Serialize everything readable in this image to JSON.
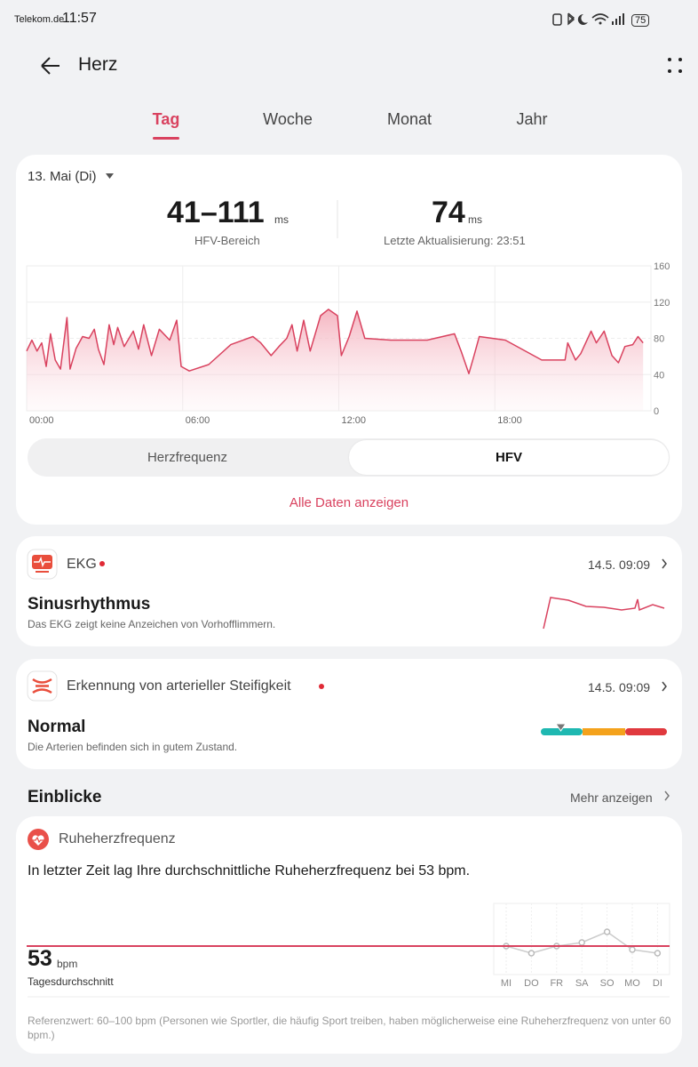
{
  "status_bar": {
    "carrier": "Telekom.de",
    "time": "11:57",
    "battery": "75"
  },
  "header": {
    "title": "Herz"
  },
  "tabs": [
    "Tag",
    "Woche",
    "Monat",
    "Jahr"
  ],
  "active_tab": 0,
  "summary": {
    "date": "13. Mai (Di)",
    "range": {
      "value": "41–111",
      "unit": "ms",
      "label": "HFV-Bereich"
    },
    "latest": {
      "value": "74",
      "unit": "ms",
      "label": "Letzte Aktualisierung: 23:51"
    }
  },
  "chart_data": {
    "type": "line",
    "color": "#d9425f",
    "x": [
      0,
      0.2,
      0.4,
      0.58,
      0.75,
      0.92,
      1.1,
      1.3,
      1.55,
      1.67,
      1.9,
      2.15,
      2.4,
      2.6,
      2.76,
      2.97,
      3.17,
      3.35,
      3.5,
      3.75,
      4.1,
      4.3,
      4.5,
      4.8,
      5.1,
      5.5,
      5.77,
      5.94,
      6.25,
      7,
      7.85,
      8.7,
      9,
      9.4,
      9.7,
      10,
      10.2,
      10.4,
      10.65,
      10.9,
      11.3,
      11.6,
      11.95,
      12.1,
      12.4,
      12.7,
      13,
      14,
      15.4,
      16.45,
      16.7,
      17,
      17.2,
      17.4,
      18.4,
      19.8,
      20.7,
      20.8,
      21.1,
      21.3,
      21.7,
      21.9,
      22.2,
      22.5,
      22.75,
      23,
      23.3,
      23.5,
      23.7
    ],
    "values": [
      66,
      78,
      66,
      75,
      49,
      85,
      56,
      46,
      103,
      46,
      69,
      82,
      80,
      90,
      68,
      51,
      95,
      73,
      92,
      71,
      88,
      68,
      95,
      61,
      90,
      78,
      100,
      49,
      44,
      51,
      73,
      82,
      75,
      61,
      71,
      80,
      95,
      66,
      100,
      66,
      105,
      112,
      105,
      61,
      82,
      110,
      80,
      78,
      78,
      85,
      66,
      41,
      61,
      82,
      78,
      56,
      56,
      75,
      56,
      63,
      88,
      75,
      88,
      61,
      53,
      71,
      73,
      82,
      75
    ],
    "xlim": [
      0,
      24
    ],
    "ylim": [
      0,
      160
    ],
    "xticks": [
      {
        "value": 0,
        "label": "00:00"
      },
      {
        "value": 6,
        "label": "06:00"
      },
      {
        "value": 12,
        "label": "12:00"
      },
      {
        "value": 18,
        "label": "18:00"
      }
    ],
    "yticks": [
      0,
      40,
      80,
      120,
      160
    ],
    "grid": true
  },
  "toggle": {
    "options": [
      "Herzfrequenz",
      "HFV"
    ],
    "active": 1
  },
  "link": "Alle Daten anzeigen",
  "ekg": {
    "title": "EKG",
    "date": "14.5. 09:09",
    "result": "Sinusrhythmus",
    "description": "Das EKG zeigt keine Anzeichen von Vorhofflimmern."
  },
  "stiffness": {
    "title": "Erkennung von arterieller Steifigkeit",
    "date": "14.5. 09:09",
    "result": "Normal",
    "description": "Die Arterien befinden sich in gutem Zustand."
  },
  "insights": {
    "title": "Einblicke",
    "more": "Mehr anzeigen"
  },
  "resting": {
    "title": "Ruheherzfrequenz",
    "text": "In letzter Zeit lag Ihre durchschnittliche Ruheherzfrequenz bei 53 bpm.",
    "average": 53,
    "unit": "bpm",
    "label": "Tagesdurchschnitt",
    "chart": {
      "type": "line",
      "categories": [
        "MI",
        "DO",
        "FR",
        "SA",
        "SO",
        "MO",
        "DI"
      ],
      "values": [
        53,
        51,
        53,
        54,
        57,
        52,
        51
      ],
      "ylim": [
        45,
        65
      ]
    },
    "note": "Referenzwert: 60–100 bpm (Personen wie Sportler, die häufig Sport treiben, haben möglicherweise eine Ruheherzfrequenz von unter 60 bpm.)"
  }
}
